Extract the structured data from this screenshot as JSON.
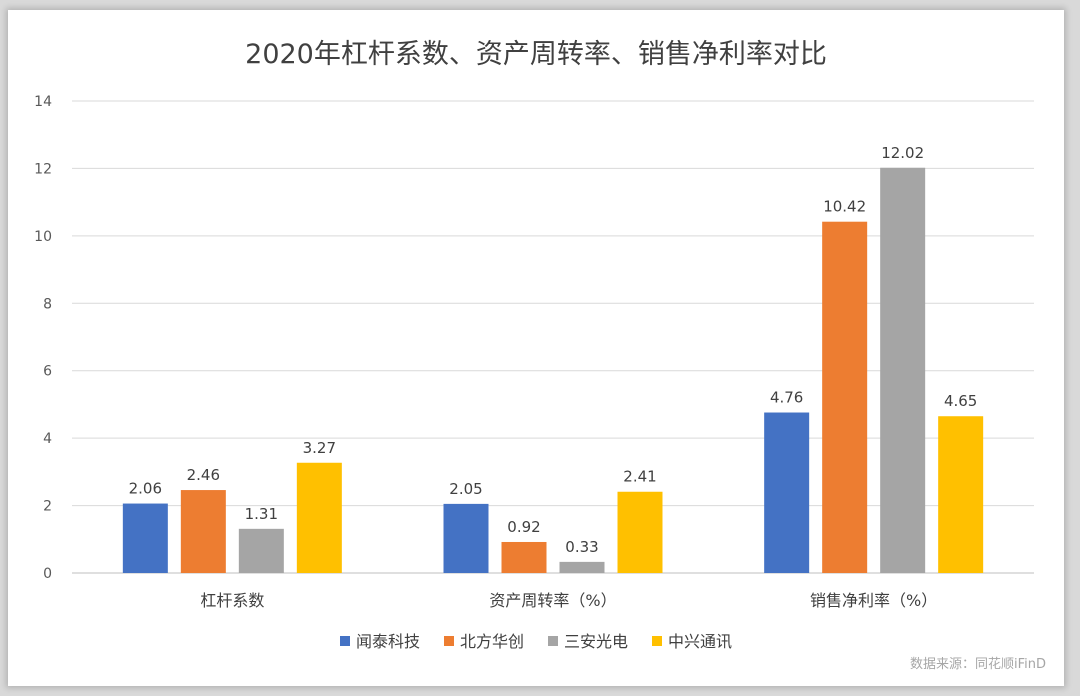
{
  "chart_data": {
    "type": "bar",
    "title": "2020年杠杆系数、资产周转率、销售净利率对比",
    "categories": [
      "杠杆系数",
      "资产周转率（%）",
      "销售净利率（%）"
    ],
    "series": [
      {
        "name": "闻泰科技",
        "color": "#4472c4",
        "values": [
          2.06,
          2.05,
          4.76
        ]
      },
      {
        "name": "北方华创",
        "color": "#ed7d31",
        "values": [
          2.46,
          0.92,
          10.42
        ]
      },
      {
        "name": "三安光电",
        "color": "#a5a5a5",
        "values": [
          1.31,
          0.33,
          12.02
        ]
      },
      {
        "name": "中兴通讯",
        "color": "#ffc000",
        "values": [
          3.27,
          2.41,
          4.65
        ]
      }
    ],
    "ylim": [
      0,
      14
    ],
    "yticks": [
      0,
      2,
      4,
      6,
      8,
      10,
      12,
      14
    ],
    "grid": true,
    "legend_position": "bottom"
  },
  "source_note": "数据来源：同花顺iFinD"
}
